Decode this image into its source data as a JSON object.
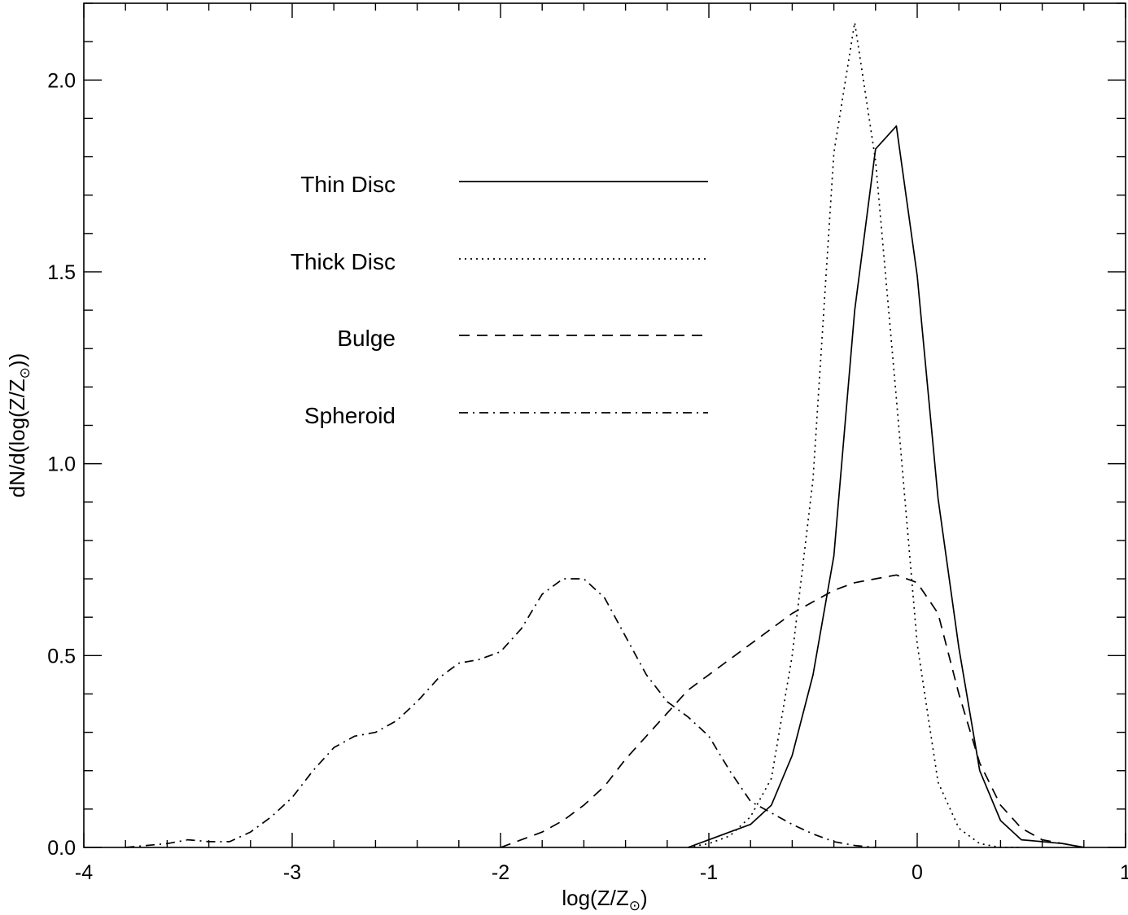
{
  "chart_data": {
    "type": "line",
    "xlabel": "log(Z/Z",
    "xlabel_sub": "⊙",
    "xlabel_close": ")",
    "ylabel": "dN/d(log(Z/Z",
    "ylabel_sub": "⊙",
    "ylabel_close": "))",
    "xlim": [
      -4,
      1
    ],
    "ylim": [
      0,
      2.2
    ],
    "x_ticks": [
      -4,
      -3,
      -2,
      -1,
      0,
      1
    ],
    "x_tick_labels": [
      "-4",
      "-3",
      "-2",
      "-1",
      "0",
      "1"
    ],
    "y_ticks": [
      0,
      0.5,
      1.0,
      1.5,
      2.0
    ],
    "y_tick_labels": [
      "0.0",
      "0.5",
      "1.0",
      "1.5",
      "2.0"
    ],
    "grid": false,
    "legend_position": "upper-left",
    "series": [
      {
        "name": "Thin Disc",
        "style": "solid",
        "x": [
          -1.1,
          -1.0,
          -0.9,
          -0.8,
          -0.7,
          -0.6,
          -0.5,
          -0.4,
          -0.3,
          -0.2,
          -0.1,
          0.0,
          0.1,
          0.2,
          0.3,
          0.4,
          0.5,
          0.6,
          0.7,
          0.8
        ],
        "y": [
          0.0,
          0.02,
          0.04,
          0.06,
          0.11,
          0.24,
          0.45,
          0.76,
          1.4,
          1.82,
          1.88,
          1.49,
          0.91,
          0.52,
          0.2,
          0.07,
          0.02,
          0.015,
          0.01,
          0.0
        ]
      },
      {
        "name": "Thick Disc",
        "style": "dotted",
        "x": [
          -1.1,
          -1.0,
          -0.9,
          -0.8,
          -0.7,
          -0.6,
          -0.5,
          -0.4,
          -0.3,
          -0.2,
          -0.1,
          0.0,
          0.1,
          0.2,
          0.3,
          0.4,
          0.5
        ],
        "y": [
          0.0,
          0.01,
          0.03,
          0.08,
          0.18,
          0.5,
          0.96,
          1.81,
          2.15,
          1.79,
          1.17,
          0.53,
          0.17,
          0.05,
          0.01,
          0.0,
          0.0
        ]
      },
      {
        "name": "Bulge",
        "style": "dashed",
        "x": [
          -2.0,
          -1.9,
          -1.8,
          -1.7,
          -1.6,
          -1.5,
          -1.4,
          -1.3,
          -1.2,
          -1.1,
          -1.0,
          -0.9,
          -0.8,
          -0.7,
          -0.6,
          -0.5,
          -0.4,
          -0.3,
          -0.2,
          -0.1,
          0.0,
          0.1,
          0.2,
          0.3,
          0.4,
          0.5,
          0.6,
          0.7,
          0.8
        ],
        "y": [
          0.0,
          0.02,
          0.04,
          0.07,
          0.11,
          0.16,
          0.23,
          0.29,
          0.35,
          0.41,
          0.45,
          0.49,
          0.53,
          0.57,
          0.61,
          0.64,
          0.67,
          0.69,
          0.7,
          0.71,
          0.69,
          0.61,
          0.4,
          0.22,
          0.11,
          0.05,
          0.02,
          0.01,
          0.0
        ]
      },
      {
        "name": "Spheroid",
        "style": "dashdot",
        "x": [
          -3.8,
          -3.7,
          -3.6,
          -3.5,
          -3.4,
          -3.3,
          -3.2,
          -3.1,
          -3.0,
          -2.9,
          -2.8,
          -2.7,
          -2.6,
          -2.5,
          -2.4,
          -2.3,
          -2.2,
          -2.1,
          -2.0,
          -1.9,
          -1.8,
          -1.7,
          -1.6,
          -1.5,
          -1.4,
          -1.3,
          -1.2,
          -1.1,
          -1.0,
          -0.9,
          -0.8,
          -0.7,
          -0.6,
          -0.5,
          -0.4,
          -0.3,
          -0.2
        ],
        "y": [
          0.0,
          0.005,
          0.01,
          0.02,
          0.015,
          0.015,
          0.04,
          0.08,
          0.13,
          0.2,
          0.26,
          0.29,
          0.3,
          0.33,
          0.38,
          0.44,
          0.48,
          0.49,
          0.51,
          0.57,
          0.66,
          0.7,
          0.7,
          0.65,
          0.55,
          0.45,
          0.38,
          0.34,
          0.29,
          0.2,
          0.12,
          0.09,
          0.06,
          0.035,
          0.015,
          0.005,
          0.0
        ]
      }
    ]
  }
}
